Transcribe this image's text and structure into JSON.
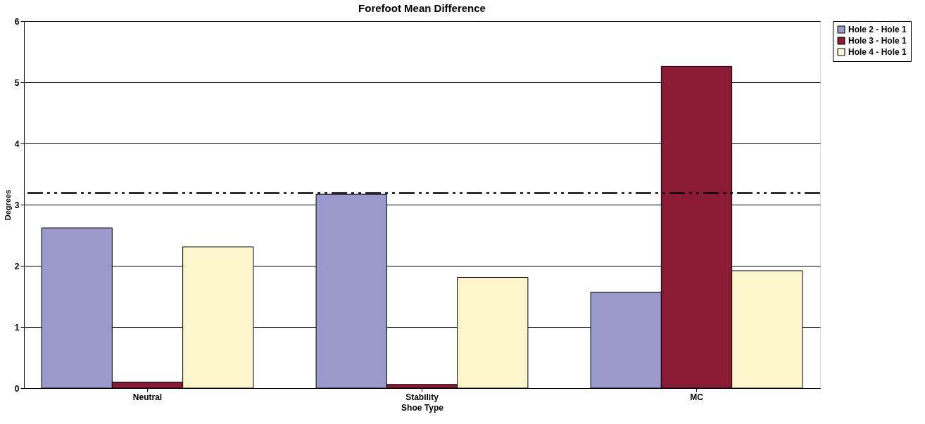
{
  "chart_data": {
    "type": "bar",
    "title": "Forefoot Mean Difference",
    "xlabel": "Shoe Type",
    "ylabel": "Degrees",
    "categories": [
      "Neutral",
      "Stability",
      "MC"
    ],
    "series": [
      {
        "name": "Hole 2 - Hole 1",
        "color": "#9999cc",
        "values": [
          2.62,
          3.17,
          1.57
        ]
      },
      {
        "name": "Hole 3 - Hole 1",
        "color": "#8b1a35",
        "values": [
          0.1,
          0.06,
          5.26
        ]
      },
      {
        "name": "Hole 4 - Hole 1",
        "color": "#fbf6cc",
        "values": [
          2.31,
          1.81,
          1.92
        ]
      }
    ],
    "ylim": [
      0,
      6
    ],
    "yticks": [
      0,
      1,
      2,
      3,
      4,
      5,
      6
    ],
    "grid": "y",
    "legend": "right",
    "ref_lines": [
      {
        "axis": "y",
        "value": 3.19,
        "color": "#000000",
        "line_style": "dashdotdot"
      }
    ]
  }
}
